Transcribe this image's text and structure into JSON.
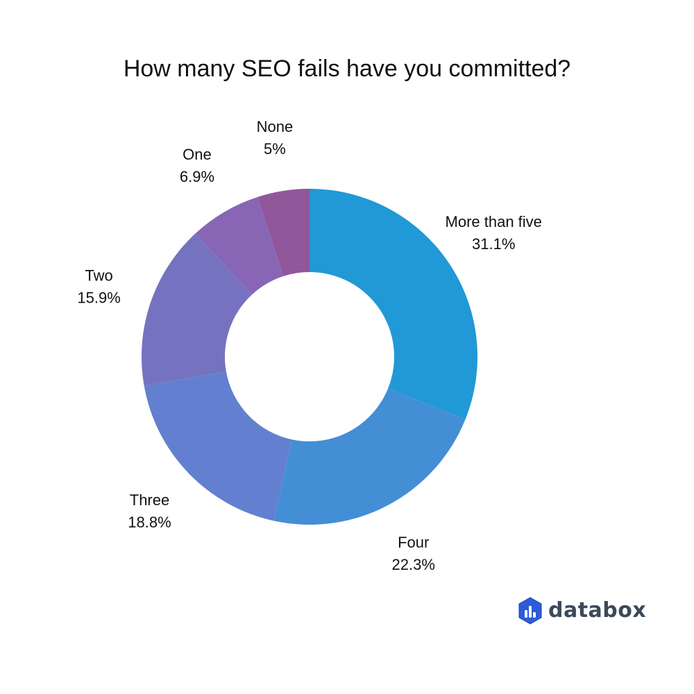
{
  "chart_data": {
    "type": "pie",
    "variant": "donut",
    "title": "How many SEO fails have you committed?",
    "start_angle_deg": 0,
    "direction": "clockwise",
    "slices": [
      {
        "label": "More than five",
        "value": 31.1,
        "value_label": "31.1%",
        "color": "#2199d6"
      },
      {
        "label": "Four",
        "value": 22.3,
        "value_label": "22.3%",
        "color": "#448ed6"
      },
      {
        "label": "Three",
        "value": 18.8,
        "value_label": "18.8%",
        "color": "#6280cf"
      },
      {
        "label": "Two",
        "value": 15.9,
        "value_label": "15.9%",
        "color": "#7573bf"
      },
      {
        "label": "One",
        "value": 6.9,
        "value_label": "6.9%",
        "color": "#8866b5"
      },
      {
        "label": "None",
        "value": 5,
        "value_label": "5%",
        "color": "#91579b"
      }
    ]
  },
  "logo": {
    "text": "databox",
    "color": "#3b4a5a",
    "mark_colors": [
      "#2e5bd8",
      "#1a44b8"
    ]
  }
}
